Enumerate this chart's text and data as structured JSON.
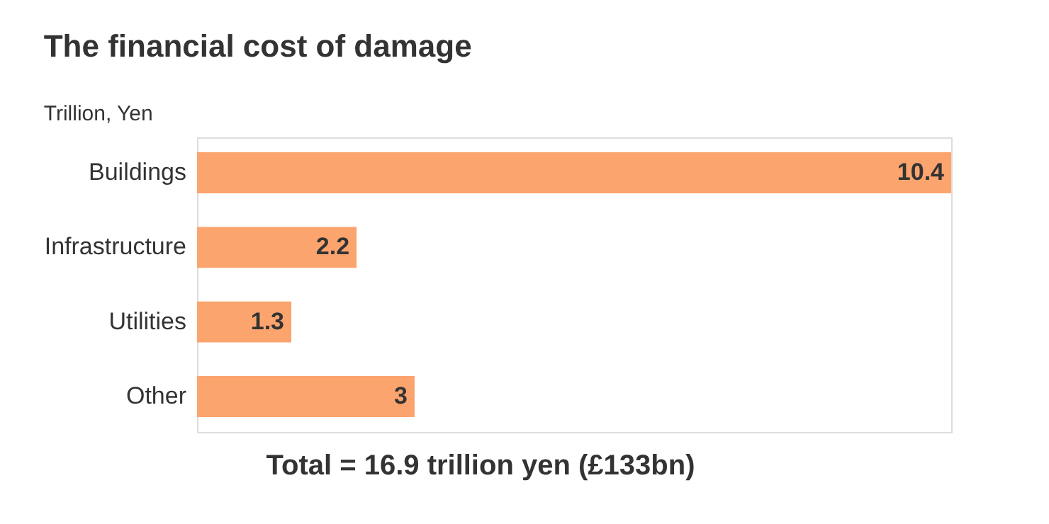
{
  "chart_data": {
    "type": "bar",
    "orientation": "horizontal",
    "title": "The financial cost of damage",
    "subtitle": "Trillion, Yen",
    "categories": [
      "Buildings",
      "Infrastructure",
      "Utilities",
      "Other"
    ],
    "values": [
      10.4,
      2.2,
      1.3,
      3
    ],
    "color": "#fca46e",
    "data_labels": true,
    "tick_labels": "y",
    "annotations": [
      "Total = 16.9 trillion yen (£133bn)"
    ]
  }
}
